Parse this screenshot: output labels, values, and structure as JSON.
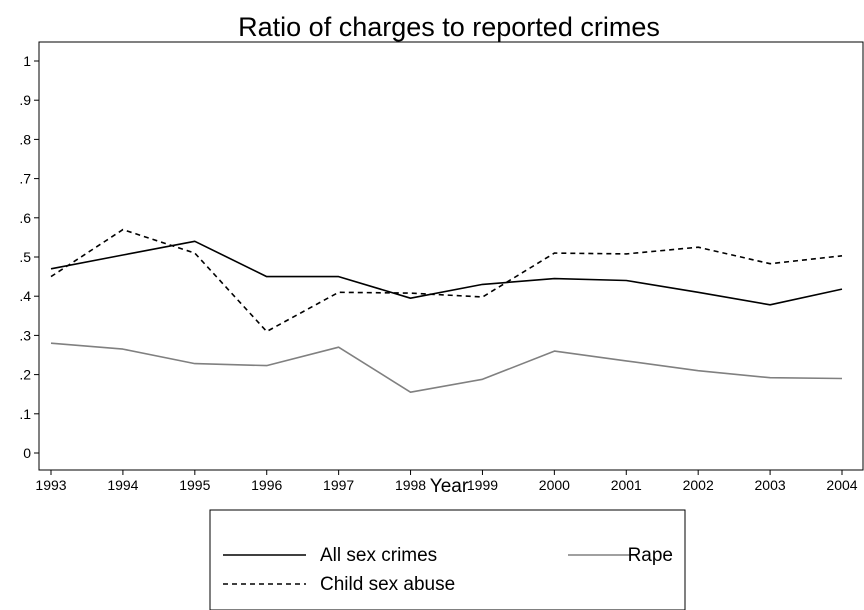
{
  "chart_data": {
    "type": "line",
    "title": "Ratio of charges to reported crimes",
    "xlabel": "Year",
    "ylabel": "",
    "x": [
      1993,
      1994,
      1995,
      1996,
      1997,
      1998,
      1999,
      2000,
      2001,
      2002,
      2003,
      2004
    ],
    "xlim": [
      1993,
      2004
    ],
    "ylim": [
      0,
      1
    ],
    "yticks": [
      0,
      0.1,
      0.2,
      0.3,
      0.4,
      0.5,
      0.6,
      0.7,
      0.8,
      0.9,
      1
    ],
    "ytick_labels": [
      "0",
      ".1",
      ".2",
      ".3",
      ".4",
      ".5",
      ".6",
      ".7",
      ".8",
      ".9",
      "1"
    ],
    "grid": false,
    "legend_position": "bottom",
    "series": [
      {
        "name": "All sex crimes",
        "color": "#000000",
        "style": "solid",
        "values": [
          0.47,
          0.505,
          0.54,
          0.45,
          0.45,
          0.395,
          0.43,
          0.445,
          0.44,
          0.41,
          0.378,
          0.418
        ]
      },
      {
        "name": "Rape",
        "color": "#808080",
        "style": "solid",
        "values": [
          0.28,
          0.265,
          0.228,
          0.223,
          0.27,
          0.155,
          0.188,
          0.26,
          0.235,
          0.21,
          0.192,
          0.19
        ]
      },
      {
        "name": "Child sex abuse",
        "color": "#000000",
        "style": "dashed",
        "values": [
          0.45,
          0.57,
          0.51,
          0.31,
          0.41,
          0.408,
          0.398,
          0.51,
          0.508,
          0.525,
          0.483,
          0.503
        ]
      }
    ]
  }
}
